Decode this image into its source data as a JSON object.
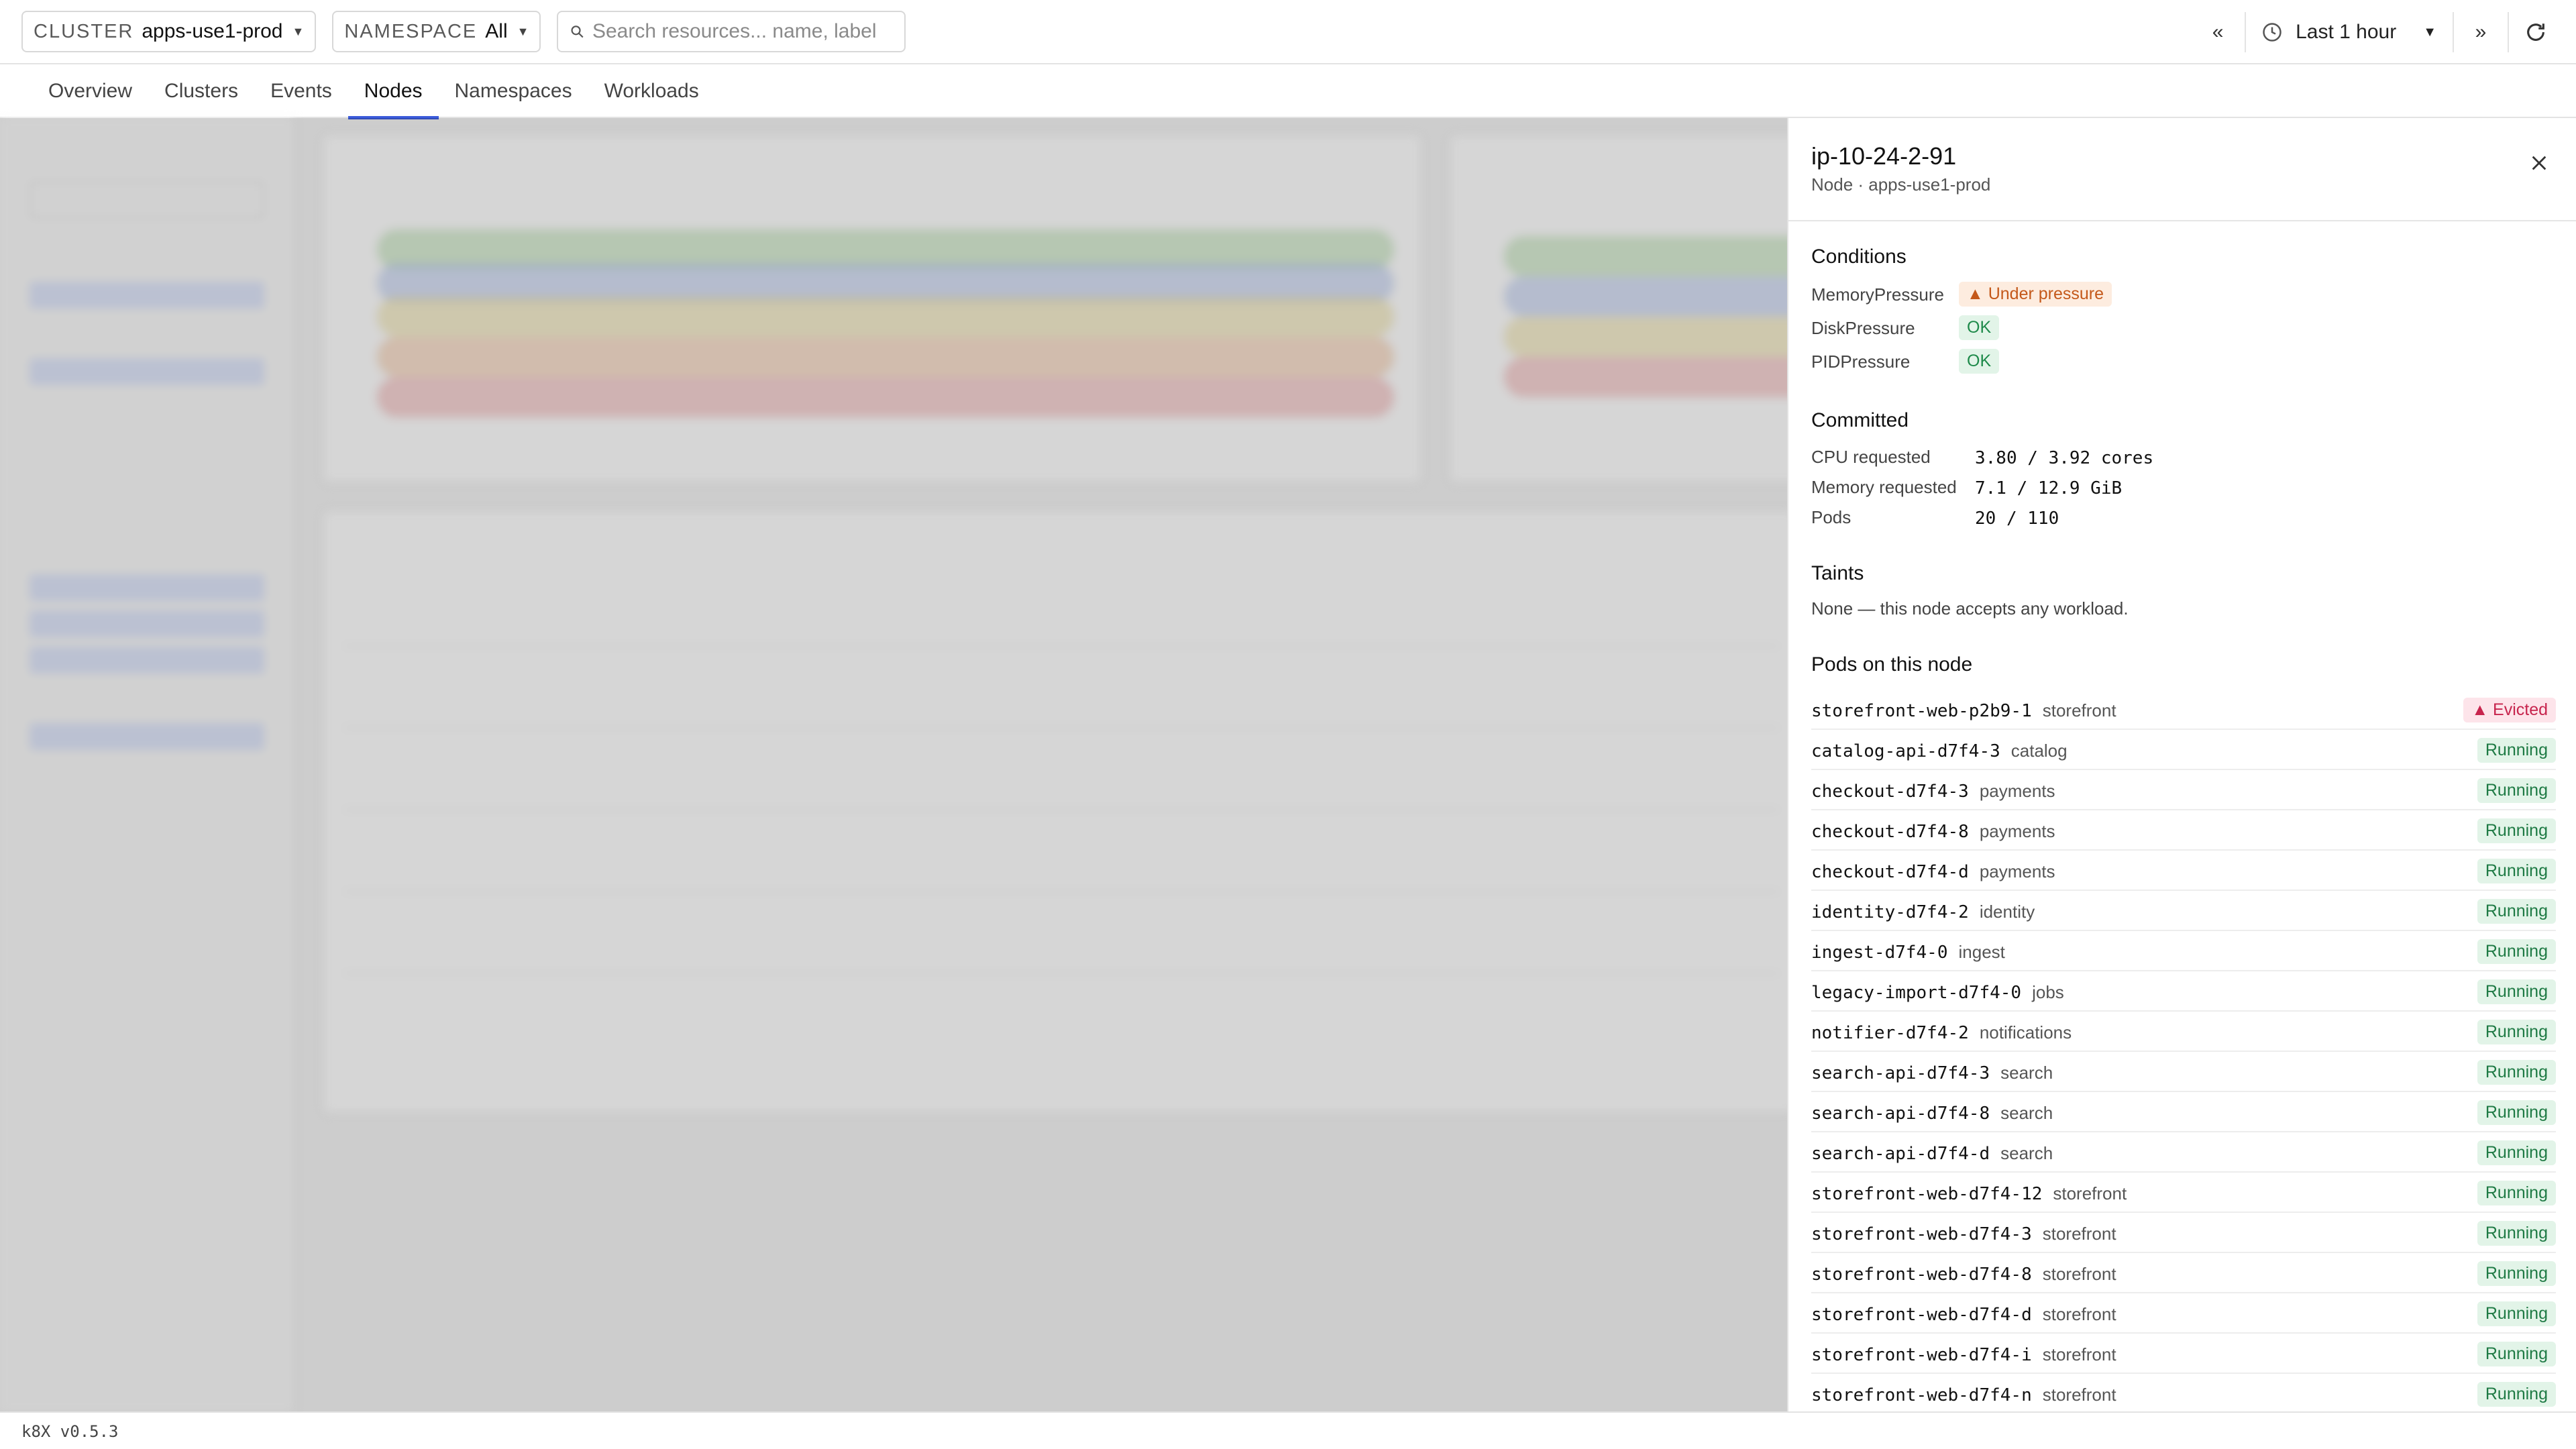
{
  "topbar": {
    "cluster_label": "CLUSTER",
    "cluster_value": "apps-use1-prod",
    "namespace_label": "NAMESPACE",
    "namespace_value": "All",
    "search_placeholder": "Search resources... name, label",
    "time_range": "Last 1 hour"
  },
  "tabs": [
    "Overview",
    "Clusters",
    "Events",
    "Nodes",
    "Namespaces",
    "Workloads"
  ],
  "active_tab": "Nodes",
  "drawer": {
    "title": "ip-10-24-2-91",
    "subtitle": "Node · apps-use1-prod",
    "conditions_title": "Conditions",
    "conditions": [
      {
        "name": "MemoryPressure",
        "status": "Under pressure",
        "kind": "warn"
      },
      {
        "name": "DiskPressure",
        "status": "OK",
        "kind": "ok"
      },
      {
        "name": "PIDPressure",
        "status": "OK",
        "kind": "ok"
      }
    ],
    "committed_title": "Committed",
    "committed": [
      {
        "label": "CPU requested",
        "value": "3.80 / 3.92 cores"
      },
      {
        "label": "Memory requested",
        "value": "7.1 / 12.9 GiB"
      },
      {
        "label": "Pods",
        "value": "20 / 110"
      }
    ],
    "taints_title": "Taints",
    "taints_note": "None — this node accepts any workload.",
    "pods_title": "Pods on this node",
    "pods": [
      {
        "name": "storefront-web-p2b9-1",
        "ns": "storefront",
        "status": "Evicted"
      },
      {
        "name": "catalog-api-d7f4-3",
        "ns": "catalog",
        "status": "Running"
      },
      {
        "name": "checkout-d7f4-3",
        "ns": "payments",
        "status": "Running"
      },
      {
        "name": "checkout-d7f4-8",
        "ns": "payments",
        "status": "Running"
      },
      {
        "name": "checkout-d7f4-d",
        "ns": "payments",
        "status": "Running"
      },
      {
        "name": "identity-d7f4-2",
        "ns": "identity",
        "status": "Running"
      },
      {
        "name": "ingest-d7f4-0",
        "ns": "ingest",
        "status": "Running"
      },
      {
        "name": "legacy-import-d7f4-0",
        "ns": "jobs",
        "status": "Running"
      },
      {
        "name": "notifier-d7f4-2",
        "ns": "notifications",
        "status": "Running"
      },
      {
        "name": "search-api-d7f4-3",
        "ns": "search",
        "status": "Running"
      },
      {
        "name": "search-api-d7f4-8",
        "ns": "search",
        "status": "Running"
      },
      {
        "name": "search-api-d7f4-d",
        "ns": "search",
        "status": "Running"
      },
      {
        "name": "storefront-web-d7f4-12",
        "ns": "storefront",
        "status": "Running"
      },
      {
        "name": "storefront-web-d7f4-3",
        "ns": "storefront",
        "status": "Running"
      },
      {
        "name": "storefront-web-d7f4-8",
        "ns": "storefront",
        "status": "Running"
      },
      {
        "name": "storefront-web-d7f4-d",
        "ns": "storefront",
        "status": "Running"
      },
      {
        "name": "storefront-web-d7f4-i",
        "ns": "storefront",
        "status": "Running"
      },
      {
        "name": "storefront-web-d7f4-n",
        "ns": "storefront",
        "status": "Running"
      }
    ]
  },
  "footer": {
    "version": "k8X v0.5.3"
  },
  "icons": {
    "search": "search-icon",
    "clock": "clock-icon",
    "close": "close-icon",
    "refresh": "refresh-icon",
    "warning": "warning-triangle-icon"
  },
  "colors": {
    "accent": "#3b5bdb",
    "ok": "#1e8a4a",
    "warn": "#c4581a",
    "evicted": "#c7244d"
  }
}
